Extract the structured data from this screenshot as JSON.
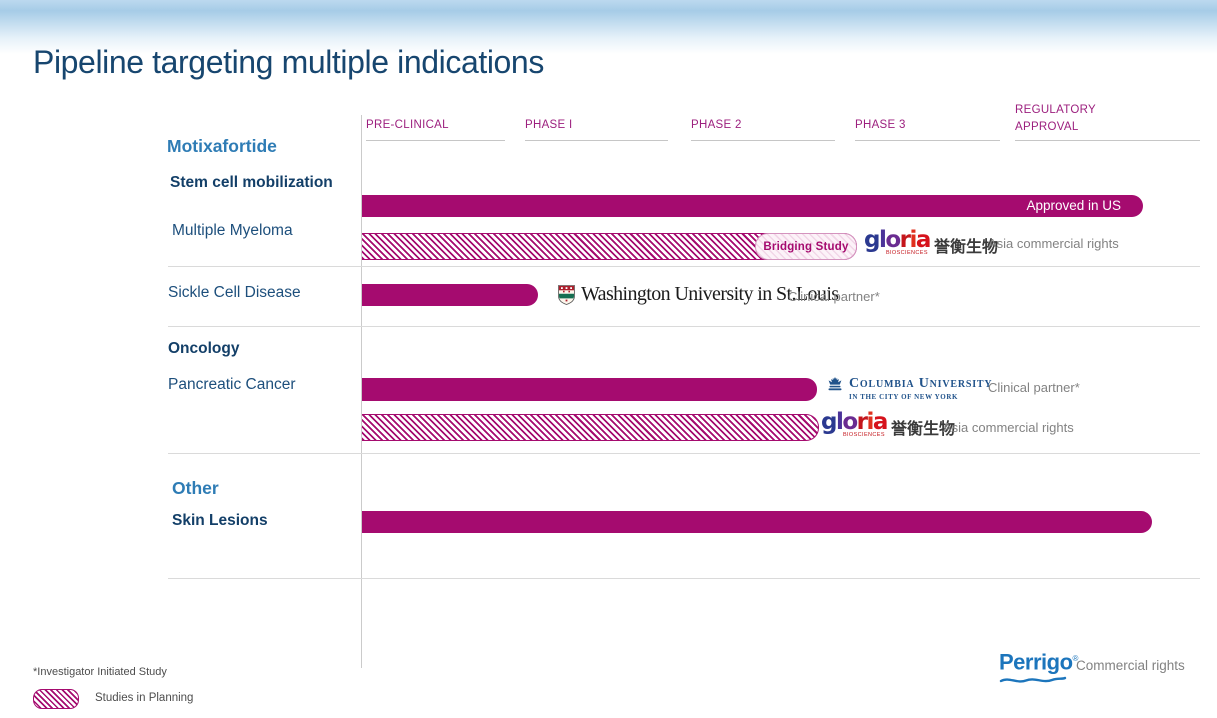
{
  "title": "Pipeline targeting multiple indications",
  "chart_data": {
    "type": "bar",
    "title": "Pipeline targeting multiple indications",
    "stages": [
      "PRE-CLINICAL",
      "PHASE I",
      "PHASE 2",
      "PHASE 3",
      "REGULATORY APPROVAL"
    ],
    "legend": "hatched bar = Studies in Planning",
    "rows": [
      {
        "group": "Motixafortide",
        "indication": "Stem cell mobilization",
        "style": "solid",
        "reaches": "Regulatory Approval",
        "bar_label": "Approved in US",
        "track_frac": 0.932
      },
      {
        "group": "Motixafortide",
        "indication": "Multiple Myeloma",
        "style": "hatched",
        "reaches": "Phase 3",
        "bar_label": "Bridging Study",
        "partner": "Gloria Biosciences",
        "note": "Asia commercial rights",
        "track_frac": 0.59
      },
      {
        "group": "Motixafortide",
        "indication": "Sickle Cell Disease",
        "style": "solid",
        "reaches": "Phase I",
        "partner": "Washington University in St.Louis",
        "note": "Clinical partner*",
        "track_frac": 0.21
      },
      {
        "group": "Oncology",
        "indication": "Pancreatic Cancer",
        "style": "solid",
        "reaches": "Phase 2",
        "partner": "Columbia University",
        "note": "Clinical partner*",
        "track_frac": 0.543
      },
      {
        "group": "Oncology",
        "indication": "Pancreatic Cancer",
        "style": "hatched",
        "reaches": "Phase 2",
        "partner": "Gloria Biosciences",
        "note": "Asia commercial rights",
        "track_frac": 0.544
      },
      {
        "group": "Other",
        "indication": "Skin Lesions",
        "style": "solid",
        "reaches": "Regulatory Approval",
        "track_frac": 0.943
      }
    ]
  },
  "labels": {
    "motixafortide": "Motixafortide",
    "stem_cell": "Stem cell mobilization",
    "multiple_myeloma": "Multiple Myeloma",
    "sickle_cell": "Sickle Cell Disease",
    "oncology": "Oncology",
    "pancreatic": "Pancreatic Cancer",
    "other": "Other",
    "skin_lesions": "Skin Lesions"
  },
  "bar_labels": {
    "approved": "Approved in US",
    "bridging": "Bridging Study"
  },
  "partners": {
    "gloria": {
      "letters": [
        "g",
        "l",
        "o",
        "r",
        "i",
        "a"
      ],
      "sub": "BIOSCIENCES",
      "cn": "誉衡生物"
    },
    "washu": {
      "name": "Washington University in St.Louis"
    },
    "columbia": {
      "line1": "Columbia University",
      "line2": "IN THE CITY OF NEW YORK"
    },
    "perrigo": {
      "name": "Perrigo",
      "reg": "®"
    }
  },
  "notes": {
    "clinical_partner": "Clinical partner*",
    "asia_rights": "Asia commercial rights",
    "commercial_rights": "Commercial rights",
    "footnote": "*Investigator Initiated Study",
    "legend": "Studies in Planning"
  },
  "colors": {
    "bar_magenta": "#A50B6F",
    "stage_header": "#9C1F7E",
    "title_navy": "#17466F",
    "group_blue": "#2E7CB5",
    "label_navy": "#133F68",
    "label_blue": "#1D4F7C",
    "muted_gray": "#828282",
    "perrigo_blue": "#1C75BC",
    "columbia_blue": "#21538B"
  }
}
